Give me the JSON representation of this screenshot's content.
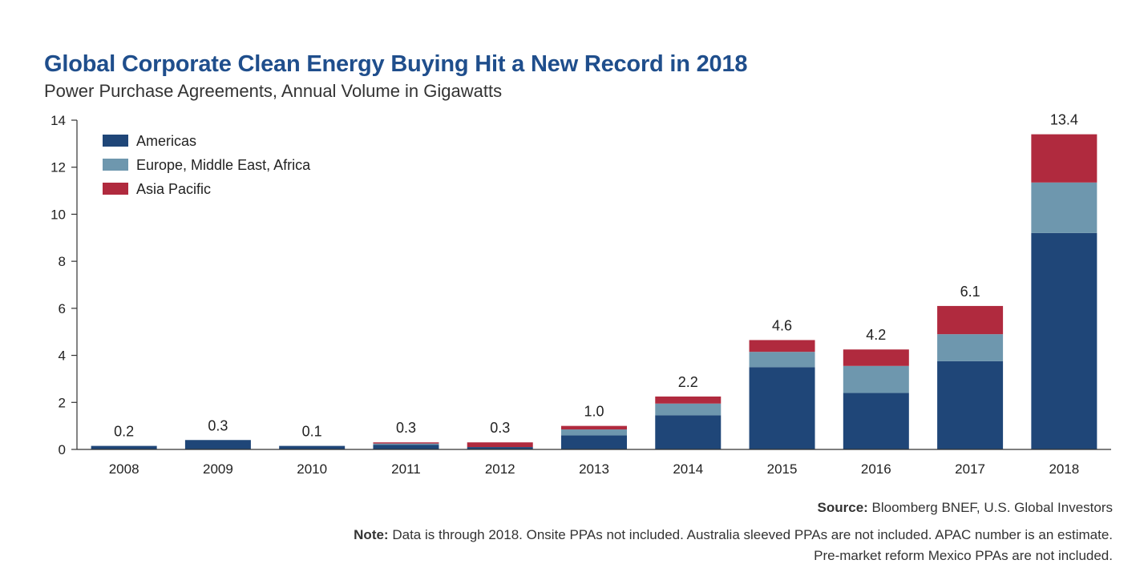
{
  "header": {
    "title": "Global Corporate Clean Energy Buying Hit a New Record in 2018",
    "subtitle": "Power Purchase Agreements, Annual Volume in Gigawatts"
  },
  "footer": {
    "source_label": "Source:",
    "source_text": " Bloomberg BNEF, U.S. Global Investors",
    "note_label": "Note:",
    "note_line1": " Data is through 2018. Onsite PPAs not included. Australia sleeved PPAs are not included. APAC number is an estimate.",
    "note_line2": "Pre-market reform Mexico PPAs are not included."
  },
  "chart_data": {
    "type": "bar",
    "stacked": true,
    "categories": [
      "2008",
      "2009",
      "2010",
      "2011",
      "2012",
      "2013",
      "2014",
      "2015",
      "2016",
      "2017",
      "2018"
    ],
    "series": [
      {
        "name": "Americas",
        "color": "#1f4678",
        "values": [
          0.15,
          0.4,
          0.15,
          0.2,
          0.1,
          0.6,
          1.45,
          3.5,
          2.4,
          3.75,
          9.2
        ]
      },
      {
        "name": "Europe, Middle East, Africa",
        "color": "#6e97ae",
        "values": [
          0.0,
          0.0,
          0.0,
          0.05,
          0.0,
          0.25,
          0.5,
          0.65,
          1.15,
          1.15,
          2.15
        ]
      },
      {
        "name": "Asia Pacific",
        "color": "#b02a3e",
        "values": [
          0.0,
          0.0,
          0.0,
          0.05,
          0.2,
          0.15,
          0.3,
          0.5,
          0.7,
          1.2,
          2.05
        ]
      }
    ],
    "totals": [
      "0.2",
      "0.3",
      "0.1",
      "0.3",
      "0.3",
      "1.0",
      "2.2",
      "4.6",
      "4.2",
      "6.1",
      "13.4"
    ],
    "ylim": [
      0,
      14
    ],
    "yticks": [
      0,
      2,
      4,
      6,
      8,
      10,
      12,
      14
    ],
    "grid": false,
    "legend_position": "top-left"
  }
}
